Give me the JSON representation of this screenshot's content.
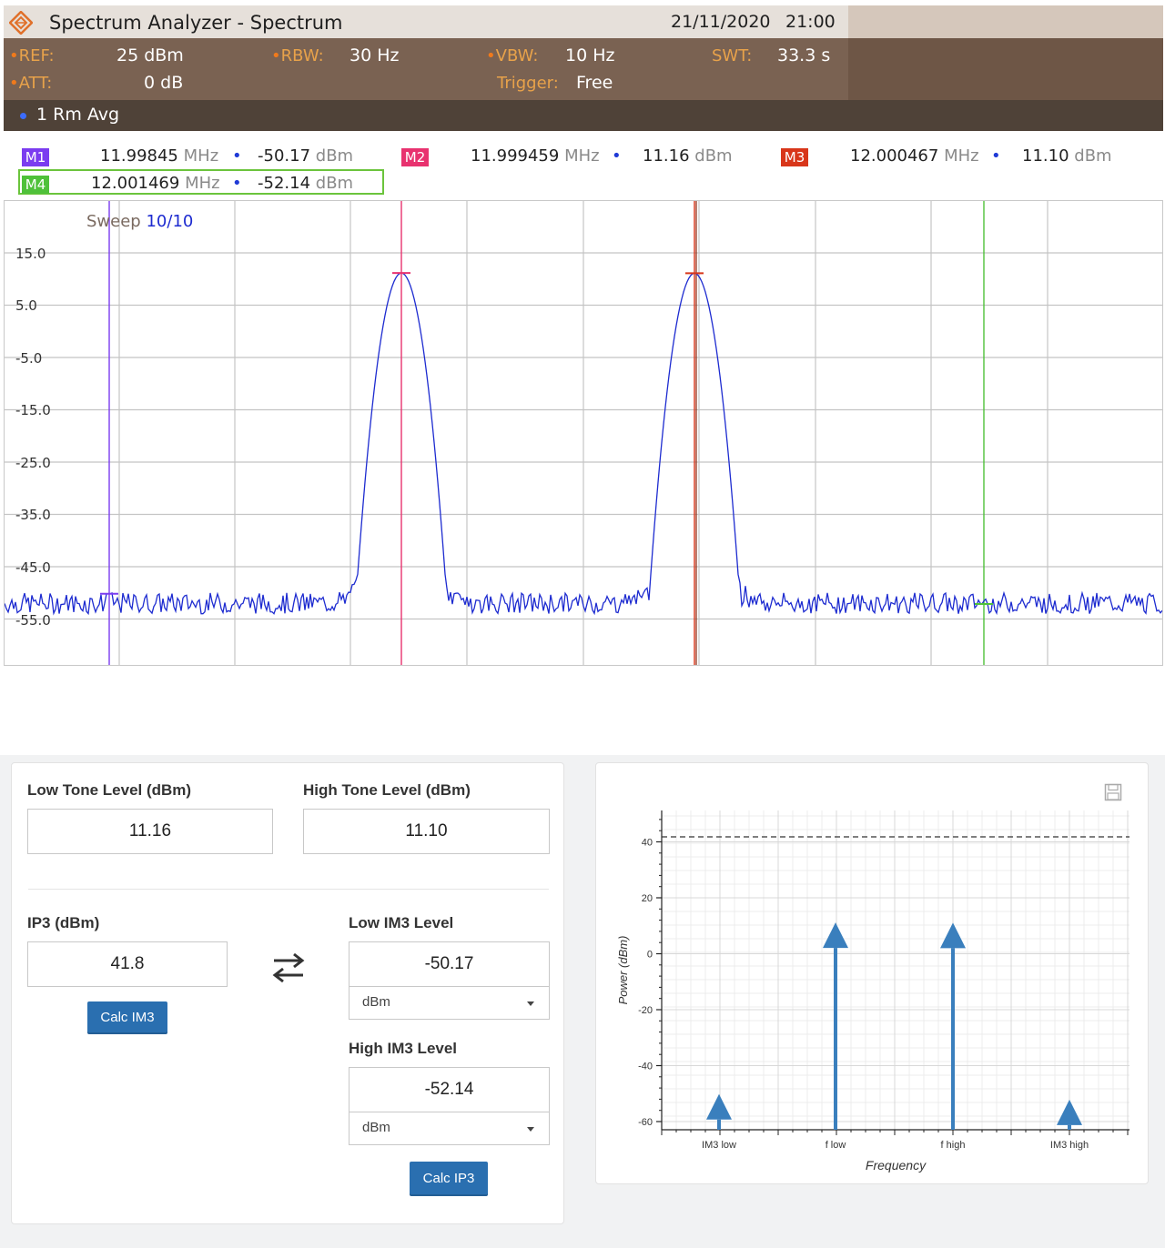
{
  "analyzer": {
    "title": "Spectrum Analyzer - Spectrum",
    "date": "21/11/2020",
    "time": "21:00",
    "settings": {
      "ref_label": "REF:",
      "ref_value": "25 dBm",
      "rbw_label": "RBW:",
      "rbw_value": "30 Hz",
      "vbw_label": "VBW:",
      "vbw_value": "10 Hz",
      "swt_label": "SWT:",
      "swt_value": "33.3 s",
      "att_label": "ATT:",
      "att_value": "0 dB",
      "trigger_label": "Trigger:",
      "trigger_value": "Free"
    },
    "trace_label": "1 Rm  Avg",
    "markers": [
      {
        "id": "M1",
        "freq": "11.99845",
        "freq_unit": "MHz",
        "level": "-50.17",
        "level_unit": "dBm",
        "color": "#7b3cf0"
      },
      {
        "id": "M2",
        "freq": "11.999459",
        "freq_unit": "MHz",
        "level": "11.16",
        "level_unit": "dBm",
        "color": "#e8326f"
      },
      {
        "id": "M3",
        "freq": "12.000467",
        "freq_unit": "MHz",
        "level": "11.10",
        "level_unit": "dBm",
        "color": "#d8361a"
      },
      {
        "id": "M4",
        "freq": "12.001469",
        "freq_unit": "MHz",
        "level": "-52.14",
        "level_unit": "dBm",
        "color": "#4fc13a"
      }
    ],
    "sweep_label": "Sweep",
    "sweep_value": "10/10",
    "y_ticks": [
      "15.0",
      "5.0",
      "-5.0",
      "-15.0",
      "-25.0",
      "-35.0",
      "-45.0",
      "-55.0"
    ],
    "trace_color": "#1d2bd0"
  },
  "calculator": {
    "low_tone_label": "Low Tone Level (dBm)",
    "low_tone_value": "11.16",
    "high_tone_label": "High Tone Level (dBm)",
    "high_tone_value": "11.10",
    "ip3_label": "IP3 (dBm)",
    "ip3_value": "41.8",
    "calc_im3_label": "Calc IM3",
    "low_im3_label": "Low IM3 Level",
    "low_im3_value": "-50.17",
    "low_im3_unit": "dBm",
    "high_im3_label": "High IM3 Level",
    "high_im3_value": "-52.14",
    "high_im3_unit": "dBm",
    "calc_ip3_label": "Calc IP3",
    "button_color": "#2a6fb0"
  },
  "chart_data": {
    "type": "bar",
    "categories": [
      "IM3 low",
      "f low",
      "f high",
      "IM3 high"
    ],
    "values": [
      -50.17,
      11.16,
      11.1,
      -52.14
    ],
    "ip3_line": 41.8,
    "xlabel": "Frequency",
    "ylabel": "Power (dBm)",
    "ylim": [
      -62,
      50
    ],
    "y_ticks": [
      40,
      20,
      0,
      -20,
      -40,
      -60
    ],
    "grid": true,
    "color": "#3a7fbd"
  }
}
